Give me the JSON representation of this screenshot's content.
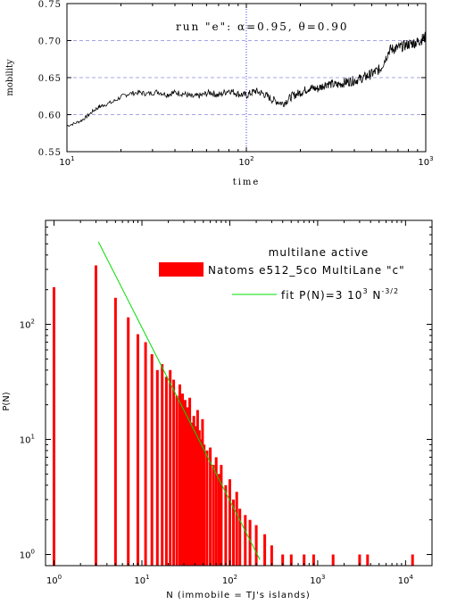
{
  "chart_data": [
    {
      "type": "line",
      "annotation": "run \"e\":   α=0.95,  θ=0.90",
      "xlabel": "time",
      "ylabel": "mobility",
      "xscale": "log",
      "xlim": [
        10,
        1000
      ],
      "ylim": [
        0.55,
        0.75
      ],
      "xticks": [
        10,
        100,
        1000
      ],
      "xtick_labels": [
        "10",
        "10",
        "10"
      ],
      "xtick_exponents": [
        "1",
        "2",
        "3"
      ],
      "yticks": [
        0.55,
        0.6,
        0.65,
        0.7,
        0.75
      ],
      "ytick_labels": [
        "0.55",
        "0.60",
        "0.65",
        "0.70",
        "0.75"
      ],
      "grid": "horizontal dashed",
      "vline_x": 100,
      "x": [
        10,
        11,
        12,
        13,
        14,
        15,
        16,
        18,
        20,
        22,
        25,
        28,
        32,
        36,
        40,
        45,
        50,
        56,
        63,
        70,
        80,
        90,
        100,
        112,
        125,
        140,
        160,
        180,
        200,
        225,
        250,
        280,
        320,
        360,
        400,
        450,
        500,
        560,
        630,
        700,
        800,
        900,
        1000
      ],
      "y": [
        0.585,
        0.588,
        0.592,
        0.598,
        0.605,
        0.61,
        0.613,
        0.617,
        0.624,
        0.628,
        0.63,
        0.628,
        0.631,
        0.627,
        0.63,
        0.628,
        0.624,
        0.626,
        0.63,
        0.626,
        0.633,
        0.628,
        0.626,
        0.632,
        0.628,
        0.62,
        0.615,
        0.625,
        0.63,
        0.636,
        0.635,
        0.642,
        0.64,
        0.644,
        0.646,
        0.65,
        0.655,
        0.662,
        0.688,
        0.69,
        0.695,
        0.698,
        0.705
      ]
    },
    {
      "type": "bar",
      "title": "multilane active",
      "xlabel": "N  (immobile = TJ's islands)",
      "ylabel": "P(N)",
      "xscale": "log",
      "yscale": "log",
      "xlim": [
        0.8,
        20000
      ],
      "ylim": [
        0.8,
        800
      ],
      "xticks": [
        1,
        10,
        100,
        1000,
        10000
      ],
      "xtick_labels": [
        "10",
        "10",
        "10",
        "10",
        "10"
      ],
      "xtick_exponents": [
        "0",
        "1",
        "2",
        "3",
        "4"
      ],
      "yticks": [
        1,
        10,
        100
      ],
      "ytick_labels": [
        "10",
        "10",
        "10"
      ],
      "ytick_exponents": [
        "0",
        "1",
        "2"
      ],
      "series": [
        {
          "name": "Natoms e512_5co MultiLane \"c\"",
          "color": "#ff0000",
          "x": [
            1,
            3,
            5,
            7,
            9,
            11,
            13,
            15,
            17,
            19,
            21,
            23,
            25,
            27,
            29,
            31,
            33,
            35,
            37,
            39,
            41,
            43,
            45,
            47,
            49,
            51,
            55,
            60,
            65,
            70,
            75,
            80,
            90,
            100,
            110,
            120,
            130,
            150,
            170,
            200,
            250,
            300,
            400,
            500,
            700,
            900,
            1500,
            3000,
            3700,
            12000
          ],
          "values": [
            210,
            325,
            170,
            115,
            82,
            70,
            55,
            40,
            45,
            35,
            40,
            33,
            24,
            30,
            25,
            22,
            19,
            23,
            14,
            16,
            13,
            18,
            12,
            10,
            15,
            9,
            8,
            8.5,
            6,
            7,
            5,
            6,
            4,
            4.5,
            3,
            3.5,
            2.5,
            2.2,
            2,
            1.8,
            1.5,
            1.2,
            1,
            1,
            1,
            1,
            1,
            1,
            1,
            1
          ]
        },
        {
          "name": "fit P(N)=3 10",
          "name_sup1": "3",
          "name_mid": " N",
          "name_sup2": "-3/2",
          "type": "line",
          "color": "#00dd00",
          "x": [
            3.2,
            220
          ],
          "values": [
            520,
            0.9
          ]
        }
      ],
      "legend": "top-right"
    }
  ]
}
